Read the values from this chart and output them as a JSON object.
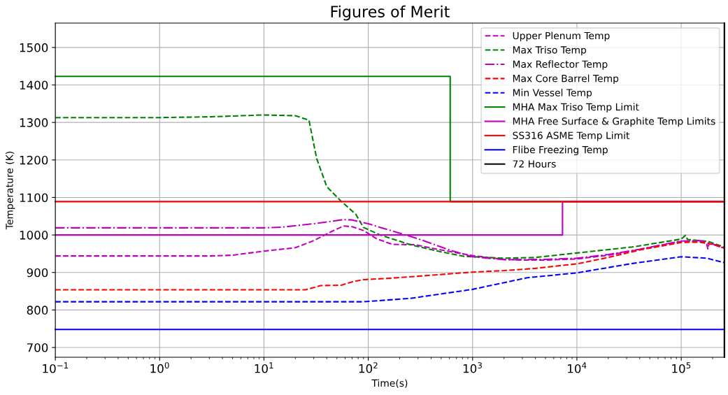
{
  "chart_data": {
    "type": "line",
    "title": "Figures of Merit",
    "xlabel": "Time(s)",
    "ylabel": "Temperature (K)",
    "log": "x",
    "grid": true,
    "legend": "top right",
    "xlim": [
      0.1,
      259200
    ],
    "ylim": [
      674,
      1565
    ],
    "xticks": [
      {
        "value": 0.1,
        "label": "10$^{−1}$"
      },
      {
        "value": 1,
        "label": "10$^{0}$"
      },
      {
        "value": 10,
        "label": "10$^{1}$"
      },
      {
        "value": 100,
        "label": "10$^{2}$"
      },
      {
        "value": 1000,
        "label": "10$^{3}$"
      },
      {
        "value": 10000,
        "label": "10$^{4}$"
      },
      {
        "value": 100000,
        "label": "10$^{5}$"
      }
    ],
    "yticks": [
      700,
      800,
      900,
      1000,
      1100,
      1200,
      1300,
      1400,
      1500
    ],
    "series": [
      {
        "name": "Upper Plenum Temp",
        "color": "#bf00bf",
        "line_style": "dashed",
        "x": [
          0.1,
          1,
          3,
          5,
          10,
          20,
          30,
          45,
          58,
          70,
          90,
          120,
          170,
          280,
          500,
          1000,
          2000,
          3000,
          5000,
          10000,
          20000,
          40000,
          70000,
          100000,
          150000,
          175000,
          180000,
          185000,
          200000,
          259200
        ],
        "values": [
          944,
          944,
          944,
          946,
          957,
          966,
          985,
          1010,
          1024,
          1022,
          1012,
          990,
          975,
          974,
          960,
          945,
          935,
          933,
          933,
          936,
          946,
          961,
          975,
          983,
          983,
          978,
          963,
          977,
          975,
          965
        ]
      },
      {
        "name": "Max Triso Temp",
        "color": "#008000",
        "line_style": "dashed",
        "x": [
          0.1,
          1,
          3,
          10,
          20,
          27,
          32,
          40,
          54,
          76,
          90,
          130,
          254,
          500,
          830,
          2000,
          4000,
          10000,
          34000,
          100000,
          110000,
          115000,
          180000,
          259200
        ],
        "values": [
          1313,
          1313,
          1315,
          1320,
          1318,
          1306,
          1204,
          1129,
          1092,
          1055,
          1020,
          1000,
          974,
          955,
          943,
          938,
          940,
          952,
          968,
          989,
          999,
          988,
          983,
          968
        ]
      },
      {
        "name": "Max Reflector Temp",
        "color": "#bf00bf",
        "line_style": "dashdot",
        "x": [
          0.1,
          1,
          10,
          15,
          30,
          58,
          70,
          100,
          150,
          300,
          600,
          1000,
          2000,
          5000,
          10000,
          20000,
          40000,
          100000,
          150000,
          200000,
          259200
        ],
        "values": [
          1019,
          1019,
          1019,
          1021,
          1030,
          1041,
          1040,
          1030,
          1015,
          990,
          960,
          942,
          934,
          935,
          938,
          948,
          962,
          984,
          985,
          976,
          966
        ]
      },
      {
        "name": "Max Core Barrel Temp",
        "color": "#ff0000",
        "line_style": "dashed",
        "x": [
          0.1,
          1,
          10,
          25,
          35,
          55,
          70,
          90,
          150,
          300,
          1000,
          2000,
          4000,
          10000,
          20000,
          40000,
          100000,
          150000,
          200000,
          259200
        ],
        "values": [
          854,
          854,
          854,
          854,
          865,
          866,
          875,
          881,
          884,
          890,
          901,
          905,
          911,
          923,
          940,
          960,
          980,
          981,
          975,
          965
        ]
      },
      {
        "name": "Min Vessel Temp",
        "color": "#0000ff",
        "line_style": "dashed",
        "x": [
          0.1,
          1,
          10,
          90,
          254,
          1000,
          3340,
          10000,
          34000,
          100000,
          176000,
          259200
        ],
        "values": [
          822,
          822,
          822,
          822,
          831,
          855,
          886,
          899,
          924,
          942,
          938,
          926
        ]
      },
      {
        "name": "MHA Max Triso Temp Limit",
        "color": "#008000",
        "line_style": "solid",
        "x": [
          0.1,
          610,
          610,
          259200
        ],
        "values": [
          1423,
          1423,
          1089,
          1089
        ]
      },
      {
        "name": "MHA Free Surface & Graphite Temp Limits",
        "color": "#bf00bf",
        "line_style": "solid",
        "x": [
          0.1,
          7280,
          7280,
          259200
        ],
        "values": [
          1000,
          1000,
          1089,
          1089
        ]
      },
      {
        "name": "SS316 ASME Temp Limit",
        "color": "#ff0000",
        "line_style": "solid",
        "x": [
          0.1,
          259200
        ],
        "values": [
          1089,
          1089
        ]
      },
      {
        "name": "Flibe Freezing Temp",
        "color": "#0000ff",
        "line_style": "solid",
        "x": [
          0.1,
          259200
        ],
        "values": [
          748,
          748
        ]
      },
      {
        "name": "72 Hours",
        "color": "#000000",
        "line_style": "solid",
        "x": [
          259200,
          259200
        ],
        "values": [
          674,
          1565
        ]
      }
    ]
  }
}
